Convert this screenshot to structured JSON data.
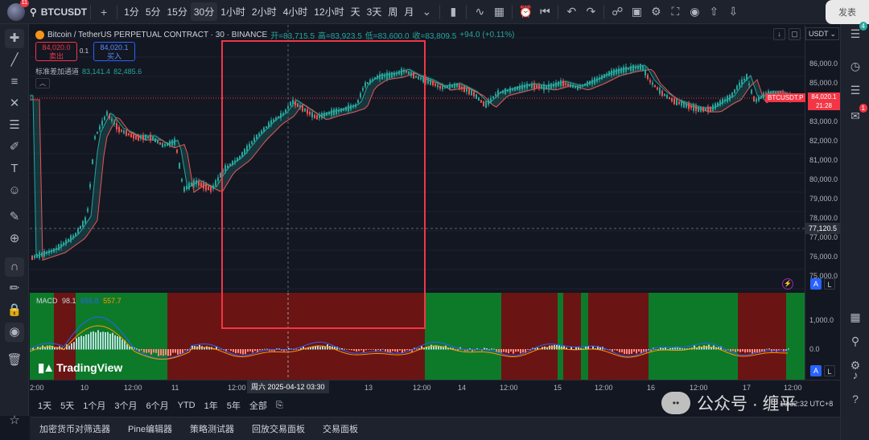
{
  "topbar": {
    "avatar_badge": "11",
    "symbol": "BTCUSDT",
    "add": "+",
    "intervals": [
      "1分",
      "5分",
      "15分",
      "30分",
      "1小时",
      "2小时",
      "4小时",
      "12小时",
      "天",
      "3天",
      "周",
      "月"
    ],
    "active_interval": "30分",
    "right_label": "发表"
  },
  "legend": {
    "title": "Bitcoin / TetherUS PERPETUAL CONTRACT · 30 · BINANCE",
    "open": "开=83,715.5",
    "high": "高=83,923.5",
    "low": "低=83,600.0",
    "close": "收=83,809.5",
    "change": "+94.0 (+0.11%)"
  },
  "trade": {
    "sell_price": "84,020.0",
    "sell_label": "卖出",
    "spread": "0.1",
    "buy_price": "84,020.1",
    "buy_label": "买入"
  },
  "bb": {
    "name": "标准差加通道",
    "v1": "83,141.4",
    "v2": "82,485.6"
  },
  "collapse": "︿",
  "price_axis": {
    "currency": "USDT",
    "labels": [
      "86,000.0",
      "85,000.0",
      "84,000.0",
      "83,000.0",
      "82,000.0",
      "81,000.0",
      "80,000.0",
      "79,000.0",
      "78,000.0",
      "77,000.0",
      "76,000.0",
      "75,000.0"
    ],
    "macd_labels": [
      "1,000.0",
      "0.0"
    ],
    "crosshair_price": "77,120.5",
    "last_price": "84,020.1",
    "countdown": "21:28",
    "symbol_tag": "BTCUSDT.P"
  },
  "macd": {
    "name": "MACD",
    "hist": "98.1",
    "macd": "655.8",
    "signal": "557.7"
  },
  "time_axis": {
    "labels": [
      "2:00",
      "10",
      "12:00",
      "11",
      "12:00",
      "13",
      "12:00",
      "14",
      "12:00",
      "15",
      "12:00",
      "16",
      "12:00",
      "17",
      "12:00"
    ],
    "crosshair": "周六 2025-04-12   03:30"
  },
  "logo": "TradingView",
  "ranges": [
    "1天",
    "5天",
    "1个月",
    "3个月",
    "6个月",
    "YTD",
    "1年",
    "5年",
    "全部"
  ],
  "bottom_tabs": [
    "加密货币对筛选器",
    "Pine编辑器",
    "策略测试器",
    "回放交易面板",
    "交易面板"
  ],
  "clock": "10:32:32 UTC+8",
  "watermark": "公众号 · 缠平",
  "right_badges": {
    "top": "4",
    "alert": "1"
  },
  "colors": {
    "up": "#26a69a",
    "down": "#ef5350",
    "bg": "#131722",
    "accent": "#2962ff"
  }
}
